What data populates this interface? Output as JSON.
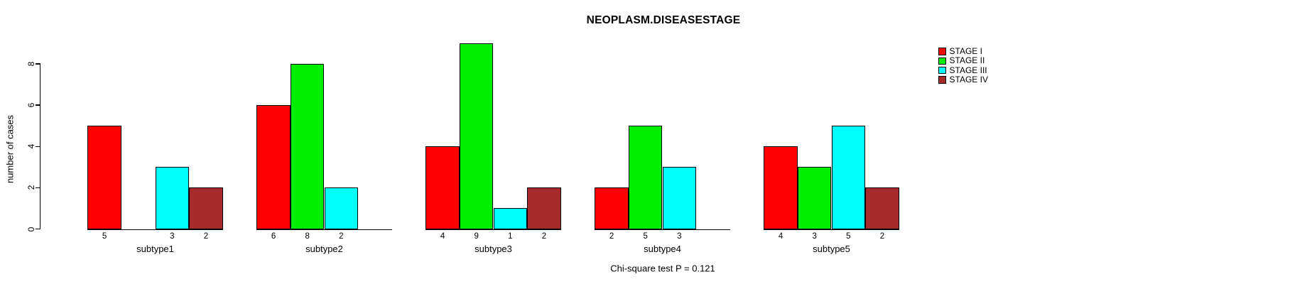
{
  "chart_data": {
    "type": "bar",
    "grouped": true,
    "title": "NEOPLASM.DISEASESTAGE",
    "ylabel": "number of cases",
    "annotation": "Chi-square test P = 0.121",
    "categories": [
      "subtype1",
      "subtype2",
      "subtype3",
      "subtype4",
      "subtype5"
    ],
    "series": [
      {
        "name": "STAGE I",
        "color": "#FF0000",
        "values": [
          5,
          6,
          4,
          2,
          4
        ]
      },
      {
        "name": "STAGE II",
        "color": "#00EE00",
        "values": [
          0,
          8,
          9,
          5,
          3
        ]
      },
      {
        "name": "STAGE III",
        "color": "#00FFFF",
        "values": [
          3,
          2,
          1,
          3,
          5
        ]
      },
      {
        "name": "STAGE IV",
        "color": "#A52A2A",
        "values": [
          2,
          0,
          2,
          0,
          2
        ]
      }
    ],
    "yticks": [
      0,
      2,
      4,
      6,
      8
    ],
    "axis_max": 8,
    "legend_position": "right-inside",
    "value_labels": "count shown beneath each non-zero bar; zero bars omitted",
    "grid": false
  }
}
